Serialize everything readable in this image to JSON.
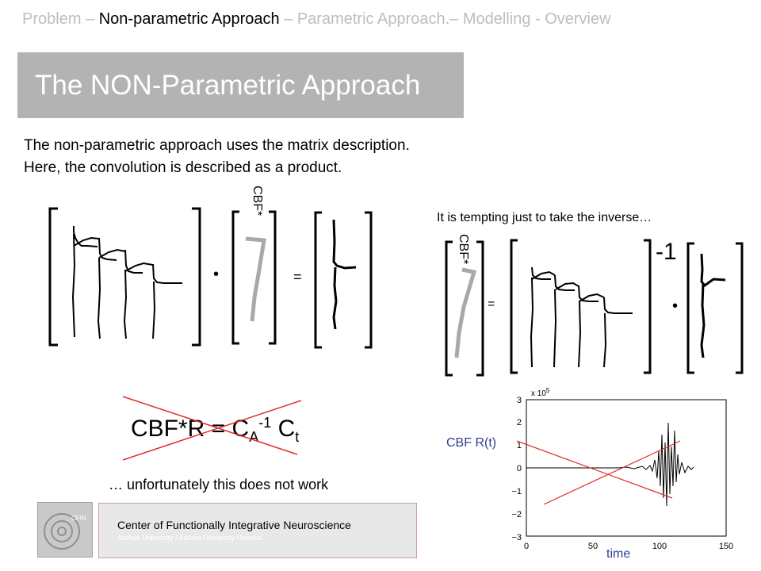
{
  "breadcrumb": {
    "part1": "Problem – ",
    "active": "Non-parametric Approach",
    "part2": " – Parametric Approach.– Modelling - Overview"
  },
  "title": "The NON-Parametric Approach",
  "intro": {
    "line1": "The non-parametric approach uses the matrix description.",
    "line2": "Here, the convolution is described as a product."
  },
  "left_equation": {
    "vector_label": "CBF*",
    "dot": "•",
    "equals": "="
  },
  "right_equation": {
    "heading": "It is tempting just to take the inverse…",
    "vector_label": "CBF*",
    "equals": "=",
    "inverse": "-1",
    "dot": "•"
  },
  "formula": {
    "lhs": "CBF*R = C",
    "sub_a": "A",
    "sup": "-1",
    "c": " C",
    "sub_t": "t"
  },
  "caption": "… unfortunately this does not work",
  "plot": {
    "ylabel": "CBF R(t)",
    "xlabel": "time",
    "exponent": "x 10",
    "exponent_power": "5",
    "yticks": [
      "3",
      "2",
      "1",
      "0",
      "−1",
      "−2",
      "−3"
    ],
    "xticks": [
      "0",
      "50",
      "100",
      "150"
    ]
  },
  "footer": {
    "logo_text": "CFIN",
    "title": "Center of Functionally  Integrative  Neuroscience",
    "subtitle": "Aarhus University / Aarhus University Hospital"
  },
  "colors": {
    "title_bg": "#b3b3b3",
    "breadcrumb_inactive": "#bdbdbd",
    "cross": "#e0302a",
    "plot_label": "#2d3f8f"
  }
}
